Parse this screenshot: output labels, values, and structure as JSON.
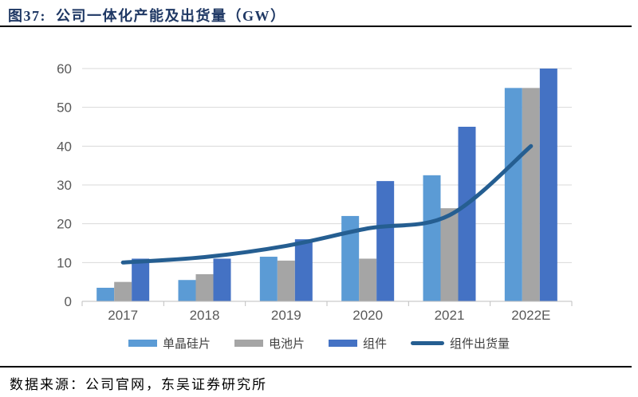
{
  "header": {
    "title": "图37:  公司一体化产能及出货量（GW）",
    "title_color": "#1F3864"
  },
  "footer": {
    "source": "数据来源：公司官网，东吴证券研究所"
  },
  "chart_data": {
    "type": "bar",
    "title": "公司一体化产能及出货量（GW）",
    "categories": [
      "2017",
      "2018",
      "2019",
      "2020",
      "2021",
      "2022E"
    ],
    "series": [
      {
        "name": "单晶硅片",
        "type": "bar",
        "color": "#5B9BD5",
        "values": [
          3.5,
          5.5,
          11.5,
          22,
          32.5,
          55
        ]
      },
      {
        "name": "电池片",
        "type": "bar",
        "color": "#A5A5A5",
        "values": [
          5,
          7,
          10.5,
          11,
          24,
          55
        ]
      },
      {
        "name": "组件",
        "type": "bar",
        "color": "#4472C4",
        "values": [
          11,
          11,
          16,
          31,
          45,
          60
        ]
      },
      {
        "name": "组件出货量",
        "type": "line",
        "color": "#255E91",
        "values": [
          10,
          11.4,
          14.3,
          18.8,
          22.2,
          40
        ]
      }
    ],
    "xlabel": "",
    "ylabel": "",
    "ylim": [
      0,
      60
    ],
    "ytick_step": 10,
    "yticks": [
      0,
      10,
      20,
      30,
      40,
      50,
      60
    ],
    "grid": true,
    "legend_position": "bottom",
    "axis_label_color": "#595959",
    "gridline_color": "#D9D9D9",
    "axis_line_color": "#BFBFBF"
  }
}
